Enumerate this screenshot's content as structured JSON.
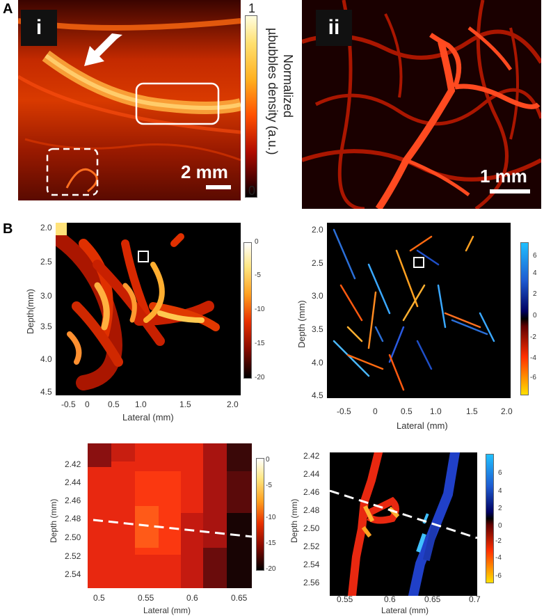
{
  "panel_A": {
    "label": "A",
    "sub_i": {
      "tag": "i",
      "scale_bar": "2 mm",
      "colorbar": {
        "max": "1",
        "min": "0",
        "title_line1": "Normalized",
        "title_line2": "µbubbles density (a.u.)"
      }
    },
    "sub_ii": {
      "tag": "ii",
      "scale_bar": "1 mm"
    }
  },
  "panel_B": {
    "label": "B",
    "top_left": {
      "ylabel": "Depth(mm)",
      "xlabel": "Lateral (mm)",
      "yticks": [
        "2.0",
        "2.5",
        "3.0",
        "3.5",
        "4.0",
        "4.5"
      ],
      "xticks": [
        "-0.5",
        "0",
        "0.5",
        "1.0",
        "1.5",
        "2.0"
      ],
      "cbar_ticks": [
        "0",
        "-5",
        "-10",
        "-15",
        "-20"
      ]
    },
    "top_right": {
      "ylabel": "Depth (mm)",
      "xlabel": "Lateral (mm)",
      "yticks": [
        "2.0",
        "2.5",
        "3.0",
        "3.5",
        "4.0",
        "4.5"
      ],
      "xticks": [
        "-0.5",
        "0",
        "0.5",
        "1.0",
        "1.5",
        "2.0"
      ],
      "cbar_ticks": [
        "6",
        "4",
        "2",
        "0",
        "-2",
        "-4",
        "-6"
      ]
    },
    "bottom_left": {
      "ylabel": "Depth (mm)",
      "xlabel": "Lateral (mm)",
      "yticks": [
        "2.42",
        "2.44",
        "2.46",
        "2.48",
        "2.50",
        "2.52",
        "2.54"
      ],
      "xticks": [
        "0.5",
        "0.55",
        "0.6",
        "0.65"
      ],
      "cbar_ticks": [
        "0",
        "-5",
        "-10",
        "-15",
        "-20"
      ]
    },
    "bottom_right": {
      "ylabel": "Depth (mm)",
      "xlabel": "Lateral (mm)",
      "yticks": [
        "2.42",
        "2.44",
        "2.46",
        "2.48",
        "2.50",
        "2.52",
        "2.54",
        "2.56"
      ],
      "xticks": [
        "0.55",
        "0.6",
        "0.65",
        "0.7"
      ],
      "cbar_ticks": [
        "6",
        "4",
        "2",
        "0",
        "-2",
        "-4",
        "-6"
      ]
    }
  }
}
